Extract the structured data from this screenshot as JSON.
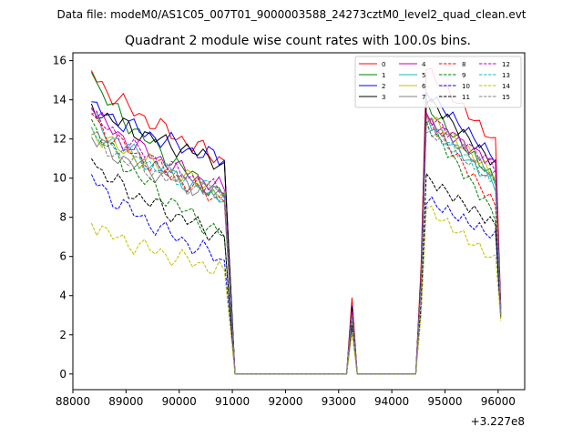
{
  "figure": {
    "suptitle": "Data file: modeM0/AS1C05_007T01_9000003588_24273cztM0_level2_quad_clean.evt"
  },
  "chart_data": {
    "type": "line",
    "title": "Quadrant 2 module wise count rates with 100.0s bins.",
    "xlabel": "",
    "ylabel": "",
    "x_offset_label": "+3.227e8",
    "xlim": [
      88000,
      96500
    ],
    "ylim": [
      -0.8,
      16.4
    ],
    "xticks": [
      88000,
      89000,
      90000,
      91000,
      92000,
      93000,
      94000,
      95000,
      96000
    ],
    "yticks": [
      0,
      2,
      4,
      6,
      8,
      10,
      12,
      14,
      16
    ],
    "legend_position": "top-right",
    "segments": [
      {
        "x0": 88350,
        "x1": 90850,
        "bin": 100
      },
      {
        "x0": 91050,
        "x1": 93150,
        "bin": 100
      },
      {
        "x0": 93250,
        "x1": 93250,
        "bin": 100
      },
      {
        "x0": 93350,
        "x1": 94450,
        "bin": 100
      },
      {
        "x0": 94550,
        "x1": 96050,
        "bin": 100
      }
    ],
    "series": [
      {
        "name": "0",
        "color": "#ff0000",
        "dashed": false,
        "a": 15.5,
        "b": 10.9,
        "spike": 3.9,
        "c": 15.6,
        "d": 11.8,
        "end": 3.5
      },
      {
        "name": "1",
        "color": "#008000",
        "dashed": false,
        "a": 15.4,
        "b": 9.0,
        "spike": 3.0,
        "c": 13.7,
        "d": 9.9,
        "end": 3.2
      },
      {
        "name": "2",
        "color": "#0000ff",
        "dashed": false,
        "a": 13.9,
        "b": 10.9,
        "spike": 3.5,
        "c": 14.4,
        "d": 11.0,
        "end": 3.4
      },
      {
        "name": "3",
        "color": "#000000",
        "dashed": false,
        "a": 13.8,
        "b": 10.8,
        "spike": 3.4,
        "c": 14.1,
        "d": 10.7,
        "end": 3.3
      },
      {
        "name": "4",
        "color": "#c000c0",
        "dashed": false,
        "a": 13.6,
        "b": 9.4,
        "spike": 3.2,
        "c": 13.0,
        "d": 10.7,
        "end": 3.1
      },
      {
        "name": "5",
        "color": "#1ab8b8",
        "dashed": false,
        "a": 13.3,
        "b": 8.8,
        "spike": 3.0,
        "c": 13.0,
        "d": 9.6,
        "end": 3.0
      },
      {
        "name": "6",
        "color": "#c0c000",
        "dashed": false,
        "a": 12.6,
        "b": 9.3,
        "spike": 3.1,
        "c": 13.3,
        "d": 10.1,
        "end": 3.1
      },
      {
        "name": "7",
        "color": "#808080",
        "dashed": false,
        "a": 12.1,
        "b": 9.1,
        "spike": 3.1,
        "c": 13.0,
        "d": 10.1,
        "end": 3.0
      },
      {
        "name": "8",
        "color": "#ff0000",
        "dashed": true,
        "a": 13.3,
        "b": 8.8,
        "spike": 3.0,
        "c": 13.1,
        "d": 8.6,
        "end": 3.0
      },
      {
        "name": "9",
        "color": "#008000",
        "dashed": true,
        "a": 13.0,
        "b": 7.0,
        "spike": 2.7,
        "c": 12.8,
        "d": 8.1,
        "end": 2.9
      },
      {
        "name": "10",
        "color": "#0000ff",
        "dashed": true,
        "a": 10.2,
        "b": 5.8,
        "spike": 2.2,
        "c": 8.9,
        "d": 7.0,
        "end": 2.8
      },
      {
        "name": "11",
        "color": "#000000",
        "dashed": true,
        "a": 11.0,
        "b": 7.0,
        "spike": 2.5,
        "c": 10.0,
        "d": 7.6,
        "end": 2.9
      },
      {
        "name": "12",
        "color": "#c000c0",
        "dashed": true,
        "a": 13.5,
        "b": 9.2,
        "spike": 3.1,
        "c": 13.2,
        "d": 10.6,
        "end": 3.1
      },
      {
        "name": "13",
        "color": "#1ab8b8",
        "dashed": true,
        "a": 12.6,
        "b": 9.2,
        "spike": 3.0,
        "c": 12.6,
        "d": 9.9,
        "end": 3.0
      },
      {
        "name": "14",
        "color": "#c0c000",
        "dashed": true,
        "a": 7.7,
        "b": 5.3,
        "spike": 2.1,
        "c": 8.5,
        "d": 5.8,
        "end": 2.7
      },
      {
        "name": "15",
        "color": "#808080",
        "dashed": true,
        "a": 12.2,
        "b": 9.0,
        "spike": 3.0,
        "c": 12.5,
        "d": 9.8,
        "end": 3.0
      }
    ]
  }
}
